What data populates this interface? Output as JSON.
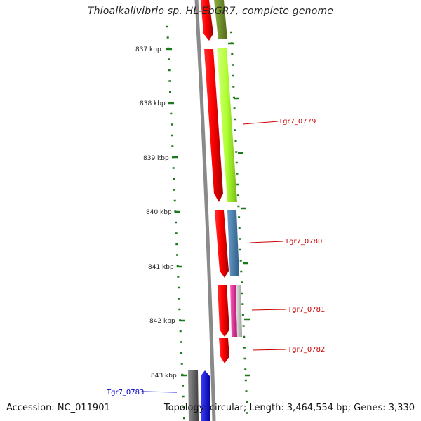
{
  "title": "Thioalkalivibrio sp. HL-EbGR7, complete genome",
  "footer": {
    "accession": "Accession: NC_011901",
    "summary": "Topology: circular; Length: 3,464,554 bp; Genes: 3,330"
  },
  "axis": {
    "unit": "kbp",
    "ticks": [
      {
        "kbp": 837,
        "label": "837 kbp"
      },
      {
        "kbp": 838,
        "label": "838 kbp"
      },
      {
        "kbp": 839,
        "label": "839 kbp"
      },
      {
        "kbp": 840,
        "label": "840 kbp"
      },
      {
        "kbp": 841,
        "label": "841 kbp"
      },
      {
        "kbp": 842,
        "label": "842 kbp"
      },
      {
        "kbp": 843,
        "label": "843 kbp"
      }
    ]
  },
  "gene_labels": [
    {
      "id": "Tgr7_0779",
      "text": "Tgr7_0779",
      "color": "#cc0000",
      "side": "right"
    },
    {
      "id": "Tgr7_0780",
      "text": "Tgr7_0780",
      "color": "#cc0000",
      "side": "right"
    },
    {
      "id": "Tgr7_0781",
      "text": "Tgr7_0781",
      "color": "#cc0000",
      "side": "right"
    },
    {
      "id": "Tgr7_0782",
      "text": "Tgr7_0782",
      "color": "#cc0000",
      "side": "right"
    },
    {
      "id": "Tgr7_0783",
      "text": "Tgr7_0783",
      "color": "#0000cc",
      "side": "left"
    }
  ],
  "colors": {
    "backbone": "#8a8a8a",
    "tick": "#1a7a1a",
    "gene_red": "#ff0000",
    "gene_olive": "#6b8e23",
    "gene_lime": "#adff2f",
    "gene_steelblue": "#4682b4",
    "gene_pink": "#e0208a",
    "gene_silver": "#c0c0c0",
    "gene_gray": "#707070",
    "gene_blue": "#0000ff"
  }
}
